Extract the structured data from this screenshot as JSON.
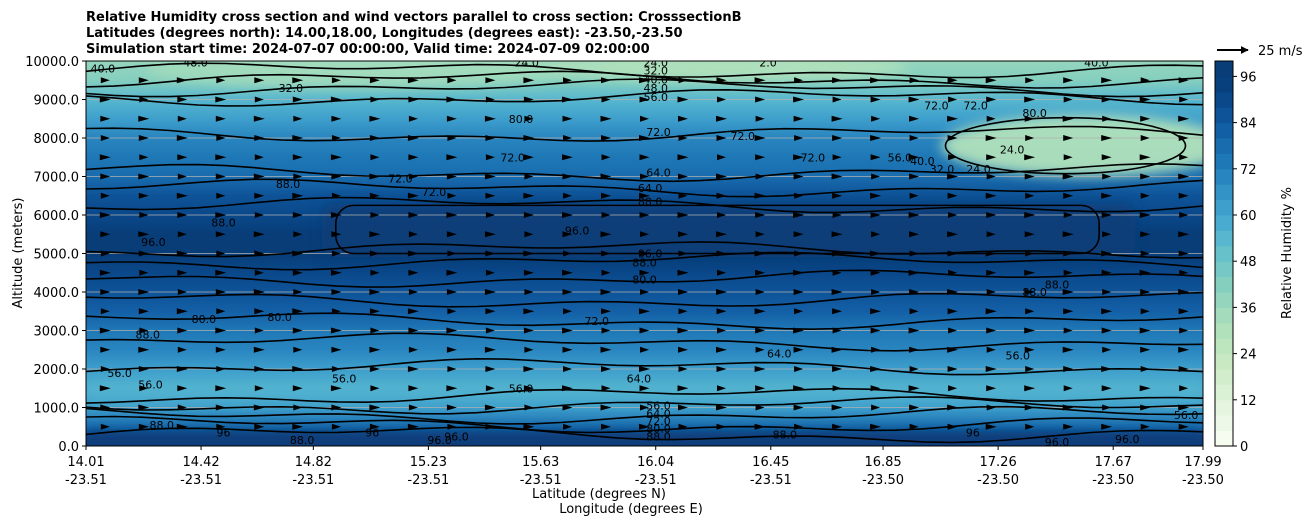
{
  "chart_data": {
    "type": "contourf_cross_section",
    "title_lines": [
      "Relative Humidity cross section and wind vectors parallel to cross section: CrosssectionB",
      "Latitudes (degrees north): 14.00,18.00, Longitudes (degrees east): -23.50,-23.50",
      "Simulation start time: 2024-07-07 00:00:00, Valid time: 2024-07-09 02:00:00"
    ],
    "ylabel": "Altitude (meters)",
    "xlabel_lat": "Latitude (degrees N)",
    "xlabel_lon": "Longitude (degrees E)",
    "ylim": [
      0,
      10000
    ],
    "yticks": [
      {
        "value": 0,
        "label": "0.0"
      },
      {
        "value": 1000,
        "label": "1000.0"
      },
      {
        "value": 2000,
        "label": "2000.0"
      },
      {
        "value": 3000,
        "label": "3000.0"
      },
      {
        "value": 4000,
        "label": "4000.0"
      },
      {
        "value": 5000,
        "label": "5000.0"
      },
      {
        "value": 6000,
        "label": "6000.0"
      },
      {
        "value": 7000,
        "label": "7000.0"
      },
      {
        "value": 8000,
        "label": "8000.0"
      },
      {
        "value": 9000,
        "label": "9000.0"
      },
      {
        "value": 10000,
        "label": "10000.0"
      }
    ],
    "xlim": [
      14.01,
      17.99
    ],
    "xticks": [
      {
        "value": 14.01,
        "lat": "14.01",
        "lon": "-23.51"
      },
      {
        "value": 14.42,
        "lat": "14.42",
        "lon": "-23.51"
      },
      {
        "value": 14.82,
        "lat": "14.82",
        "lon": "-23.51"
      },
      {
        "value": 15.23,
        "lat": "15.23",
        "lon": "-23.51"
      },
      {
        "value": 15.63,
        "lat": "15.63",
        "lon": "-23.51"
      },
      {
        "value": 16.04,
        "lat": "16.04",
        "lon": "-23.51"
      },
      {
        "value": 16.45,
        "lat": "16.45",
        "lon": "-23.51"
      },
      {
        "value": 16.85,
        "lat": "16.85",
        "lon": "-23.50"
      },
      {
        "value": 17.26,
        "lat": "17.26",
        "lon": "-23.50"
      },
      {
        "value": 17.67,
        "lat": "17.67",
        "lon": "-23.50"
      },
      {
        "value": 17.99,
        "lat": "17.99",
        "lon": "-23.50"
      }
    ],
    "colorbar": {
      "label": "Relative Humidity %",
      "range": [
        0,
        100
      ],
      "levels": [
        0,
        4,
        8,
        12,
        16,
        20,
        24,
        28,
        32,
        36,
        40,
        44,
        48,
        52,
        56,
        60,
        64,
        68,
        72,
        76,
        80,
        84,
        88,
        92,
        96,
        100
      ],
      "ticks": [
        {
          "value": 0,
          "label": "0"
        },
        {
          "value": 12,
          "label": "12"
        },
        {
          "value": 24,
          "label": "24"
        },
        {
          "value": 36,
          "label": "36"
        },
        {
          "value": 48,
          "label": "48"
        },
        {
          "value": 60,
          "label": "60"
        },
        {
          "value": 72,
          "label": "72"
        },
        {
          "value": 84,
          "label": "84"
        },
        {
          "value": 96,
          "label": "96"
        }
      ],
      "colors": [
        "#f7fcf0",
        "#eef8e8",
        "#e5f5e0",
        "#dbf1d5",
        "#d2edcb",
        "#c8e9c2",
        "#bde5be",
        "#b1e1bb",
        "#a4dbbc",
        "#95d5bd",
        "#85cfbf",
        "#75c8c5",
        "#66c1ca",
        "#58b7ce",
        "#4aabd0",
        "#3e9fcc",
        "#3392c6",
        "#2985bf",
        "#1f78b6",
        "#196cae",
        "#135fa6",
        "#0e5398",
        "#0a488a",
        "#08407e",
        "#083d78"
      ]
    },
    "wind_reference": {
      "label": "25 m/s"
    },
    "wind_rows_m": [
      500,
      1000,
      1500,
      2000,
      2500,
      3000,
      3500,
      4000,
      4500,
      5000,
      5500,
      6000,
      6500,
      7000,
      7500,
      8000,
      8500,
      9000,
      9500
    ],
    "rh_profile": {
      "altitudes_m": [
        0,
        250,
        500,
        1000,
        1500,
        2000,
        2500,
        3000,
        3500,
        4000,
        4500,
        5000,
        5500,
        6000,
        6500,
        7000,
        7500,
        8000,
        8500,
        9000,
        9500,
        10000
      ],
      "rh_percent": [
        96,
        90,
        78,
        60,
        56,
        62,
        70,
        74,
        80,
        86,
        88,
        96,
        96,
        90,
        86,
        78,
        74,
        70,
        62,
        54,
        42,
        36
      ]
    },
    "dry_pocket_upper_right": {
      "x": [
        16.95,
        17.99
      ],
      "y": [
        7000,
        8600
      ],
      "rh_percent": 28
    },
    "moist_core_midlevel": {
      "x": [
        14.85,
        17.75
      ],
      "y": [
        4900,
        6300
      ],
      "rh_percent": 97
    },
    "contour_labels": [
      {
        "x": 14.07,
        "y": 9800,
        "text": "40.0"
      },
      {
        "x": 14.4,
        "y": 9960,
        "text": "48.0"
      },
      {
        "x": 14.74,
        "y": 9300,
        "text": "32.0"
      },
      {
        "x": 15.58,
        "y": 9960,
        "text": "24.0"
      },
      {
        "x": 16.04,
        "y": 9960,
        "text": "24.0"
      },
      {
        "x": 16.04,
        "y": 9750,
        "text": "32.0"
      },
      {
        "x": 16.04,
        "y": 9520,
        "text": "40.0"
      },
      {
        "x": 16.04,
        "y": 9300,
        "text": "48.0"
      },
      {
        "x": 16.04,
        "y": 9070,
        "text": "56.0"
      },
      {
        "x": 16.44,
        "y": 9960,
        "text": "2.0"
      },
      {
        "x": 17.61,
        "y": 9960,
        "text": "40.0"
      },
      {
        "x": 17.04,
        "y": 8850,
        "text": "72.0"
      },
      {
        "x": 17.18,
        "y": 8850,
        "text": "72.0"
      },
      {
        "x": 17.39,
        "y": 8650,
        "text": "80.0"
      },
      {
        "x": 15.56,
        "y": 8500,
        "text": "80.0"
      },
      {
        "x": 16.05,
        "y": 8150,
        "text": "72.0"
      },
      {
        "x": 16.35,
        "y": 8050,
        "text": "72.0"
      },
      {
        "x": 16.6,
        "y": 7500,
        "text": "72.0"
      },
      {
        "x": 16.91,
        "y": 7500,
        "text": "56.0"
      },
      {
        "x": 16.99,
        "y": 7400,
        "text": "40.0"
      },
      {
        "x": 17.06,
        "y": 7200,
        "text": "32.0"
      },
      {
        "x": 17.19,
        "y": 7200,
        "text": "24.0"
      },
      {
        "x": 17.31,
        "y": 7700,
        "text": "24.0"
      },
      {
        "x": 15.53,
        "y": 7500,
        "text": "72.0"
      },
      {
        "x": 15.13,
        "y": 6950,
        "text": "72.0"
      },
      {
        "x": 15.25,
        "y": 6600,
        "text": "72.0"
      },
      {
        "x": 16.05,
        "y": 7100,
        "text": "64.0"
      },
      {
        "x": 16.02,
        "y": 6700,
        "text": "64.0"
      },
      {
        "x": 16.02,
        "y": 6350,
        "text": "88.0"
      },
      {
        "x": 14.73,
        "y": 6800,
        "text": "88.0"
      },
      {
        "x": 14.5,
        "y": 5800,
        "text": "88.0"
      },
      {
        "x": 14.25,
        "y": 5300,
        "text": "96.0"
      },
      {
        "x": 15.76,
        "y": 5600,
        "text": "96.0"
      },
      {
        "x": 16.02,
        "y": 5000,
        "text": "96.0"
      },
      {
        "x": 16.0,
        "y": 4770,
        "text": "88.0"
      },
      {
        "x": 16.0,
        "y": 4320,
        "text": "80.0"
      },
      {
        "x": 14.43,
        "y": 3300,
        "text": "80.0"
      },
      {
        "x": 14.7,
        "y": 3350,
        "text": "80.0"
      },
      {
        "x": 14.23,
        "y": 2900,
        "text": "88.0"
      },
      {
        "x": 15.83,
        "y": 3250,
        "text": "72.0"
      },
      {
        "x": 17.39,
        "y": 4000,
        "text": "88.0"
      },
      {
        "x": 17.47,
        "y": 4200,
        "text": "88.0"
      },
      {
        "x": 16.48,
        "y": 2400,
        "text": "64.0"
      },
      {
        "x": 17.33,
        "y": 2350,
        "text": "56.0"
      },
      {
        "x": 14.13,
        "y": 1900,
        "text": "56.0"
      },
      {
        "x": 14.24,
        "y": 1600,
        "text": "56.0"
      },
      {
        "x": 14.93,
        "y": 1750,
        "text": "56.0"
      },
      {
        "x": 15.56,
        "y": 1500,
        "text": "56.0"
      },
      {
        "x": 15.98,
        "y": 1750,
        "text": "64.0"
      },
      {
        "x": 16.05,
        "y": 1050,
        "text": "56.0"
      },
      {
        "x": 16.05,
        "y": 850,
        "text": "64.0"
      },
      {
        "x": 16.05,
        "y": 650,
        "text": "72.0"
      },
      {
        "x": 16.05,
        "y": 450,
        "text": "80.0"
      },
      {
        "x": 16.05,
        "y": 250,
        "text": "88.0"
      },
      {
        "x": 14.28,
        "y": 550,
        "text": "88.0"
      },
      {
        "x": 14.5,
        "y": 350,
        "text": "96"
      },
      {
        "x": 14.78,
        "y": 150,
        "text": "88.0"
      },
      {
        "x": 15.03,
        "y": 350,
        "text": "96"
      },
      {
        "x": 15.27,
        "y": 150,
        "text": "96.0"
      },
      {
        "x": 15.33,
        "y": 250,
        "text": "96.0"
      },
      {
        "x": 16.5,
        "y": 300,
        "text": "88.0"
      },
      {
        "x": 17.17,
        "y": 350,
        "text": "96"
      },
      {
        "x": 17.47,
        "y": 100,
        "text": "96.0"
      },
      {
        "x": 17.72,
        "y": 180,
        "text": "96.0"
      },
      {
        "x": 17.93,
        "y": 800,
        "text": "56.0"
      }
    ]
  }
}
